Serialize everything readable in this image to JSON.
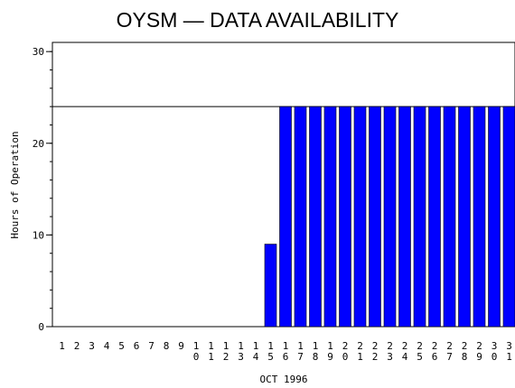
{
  "chart_data": {
    "type": "bar",
    "title": "OYSM — DATA AVAILABILITY",
    "xlabel": "OCT 1996",
    "ylabel": "Hours of Operation",
    "categories": [
      "1",
      "2",
      "3",
      "4",
      "5",
      "6",
      "7",
      "8",
      "9",
      "10",
      "11",
      "12",
      "13",
      "14",
      "15",
      "16",
      "17",
      "18",
      "19",
      "20",
      "21",
      "22",
      "23",
      "24",
      "25",
      "26",
      "27",
      "28",
      "29",
      "30",
      "31"
    ],
    "values": [
      0,
      0,
      0,
      0,
      0,
      0,
      0,
      0,
      0,
      0,
      0,
      0,
      0,
      0,
      9,
      24,
      24,
      24,
      24,
      24,
      24,
      24,
      24,
      24,
      24,
      24,
      24,
      24,
      24,
      24,
      24
    ],
    "ylim": [
      0,
      31
    ],
    "yticks": [
      0,
      10,
      20,
      30
    ],
    "reference_line": 24,
    "bar_color": "#0000ff",
    "grid": false
  }
}
